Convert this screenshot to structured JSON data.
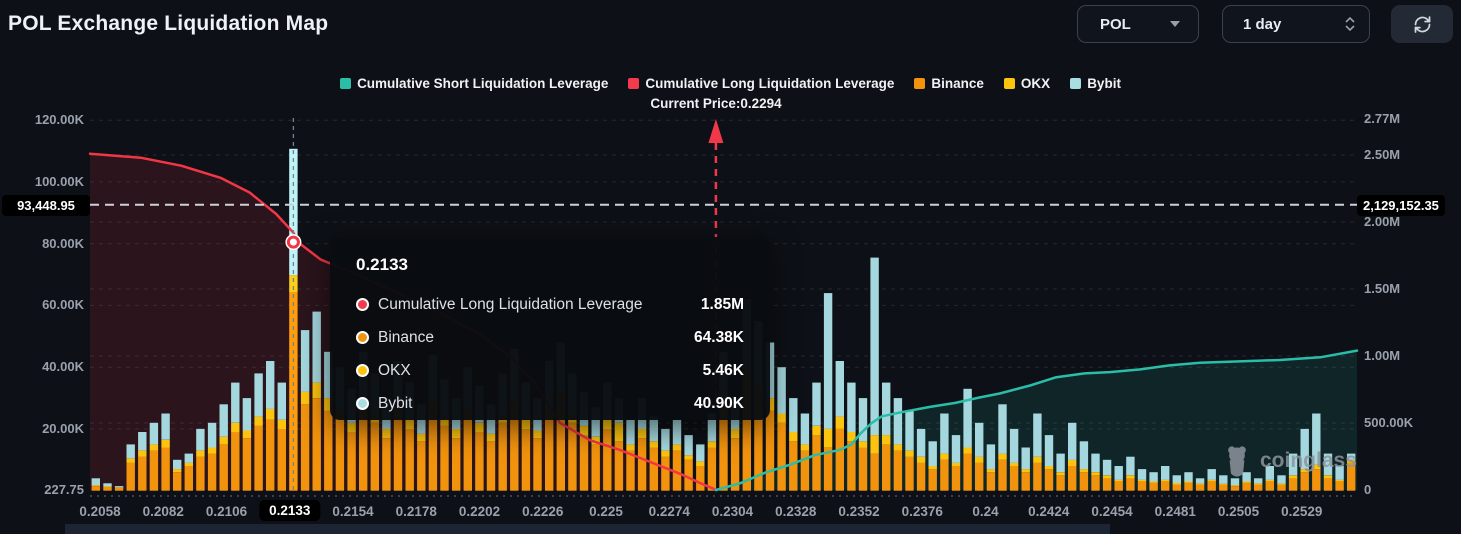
{
  "header": {
    "title": "POL Exchange Liquidation Map"
  },
  "controls": {
    "symbol": {
      "value": "POL"
    },
    "interval": {
      "value": "1 day"
    }
  },
  "legend": {
    "items": [
      {
        "label": "Cumulative Short Liquidation Leverage",
        "color": "#2abda8"
      },
      {
        "label": "Cumulative Long Liquidation Leverage",
        "color": "#f23c4d"
      },
      {
        "label": "Binance",
        "color": "#f2930d"
      },
      {
        "label": "OKX",
        "color": "#fdc40f"
      },
      {
        "label": "Bybit",
        "color": "#a9dde2"
      }
    ],
    "current_price": "Current Price:0.2294"
  },
  "tooltip": {
    "title": "0.2133",
    "rows": [
      {
        "label": "Cumulative Long Liquidation Leverage",
        "value": "1.85M",
        "color": "#f23c4d"
      },
      {
        "label": "Binance",
        "value": "64.38K",
        "color": "#f2930d"
      },
      {
        "label": "OKX",
        "value": "5.46K",
        "color": "#fdc40f"
      },
      {
        "label": "Bybit",
        "value": "40.90K",
        "color": "#a9dde2"
      }
    ]
  },
  "watermark": {
    "text": "coinglass"
  },
  "chart_data": {
    "type": "bar",
    "subtype": "stacked-bars-with-cumulative-lines",
    "x_tick_labels": [
      "0.2058",
      "0.2082",
      "0.2106",
      "0.2133",
      "0.2154",
      "0.2178",
      "0.2202",
      "0.2226",
      "0.225",
      "0.2274",
      "0.2304",
      "0.2328",
      "0.2352",
      "0.2376",
      "0.24",
      "0.2424",
      "0.2454",
      "0.2481",
      "0.2505",
      "0.2529"
    ],
    "highlighted_tick": "0.2133",
    "left_axis": {
      "unit": "K",
      "ticks": [
        {
          "label": "120.00K",
          "v": 120
        },
        {
          "label": "100.00K",
          "v": 100
        },
        {
          "label": "80.00K",
          "v": 80
        },
        {
          "label": "60.00K",
          "v": 60
        },
        {
          "label": "40.00K",
          "v": 40
        },
        {
          "label": "20.00K",
          "v": 20
        },
        {
          "label": "227.75",
          "v": 0.22775
        }
      ],
      "gridline_values": [
        120,
        100,
        80,
        60,
        40,
        20
      ],
      "crosshair": {
        "label": "93,448.95",
        "v": 93.44895
      }
    },
    "right_axis": {
      "unit": "M",
      "ticks": [
        {
          "label": "2.77M",
          "v": 2.77
        },
        {
          "label": "2.50M",
          "v": 2.5
        },
        {
          "label": "2.00M",
          "v": 2.0
        },
        {
          "label": "1.50M",
          "v": 1.5
        },
        {
          "label": "1.00M",
          "v": 1.0
        },
        {
          "label": "500.00K",
          "v": 0.5
        },
        {
          "label": "0",
          "v": 0
        }
      ],
      "gridline_values": [
        2.5,
        2.0,
        1.5,
        1.0,
        0.5
      ],
      "crosshair": {
        "label": "2,129,152.35",
        "v": 2.12915235
      }
    },
    "current_price": {
      "label": "Current Price:0.2294",
      "price": 0.2294,
      "xfrac": 0.494
    },
    "hover": {
      "bar_index": 17,
      "price": "0.2133",
      "long_value_m": 1.85
    },
    "bars": {
      "stack_order": [
        "Binance",
        "OKX",
        "Bybit"
      ],
      "unit": "K",
      "colors": [
        "#f2930d",
        "#fdc40f",
        "#a4d8de"
      ],
      "highlight_colors": [
        "#ff9d0a",
        "#ffd018",
        "#bef3f8"
      ],
      "highlight_index": 17,
      "values": [
        [
          1.5,
          0.3,
          2.2
        ],
        [
          1.2,
          0.2,
          1.0
        ],
        [
          1.0,
          0.1,
          0.4
        ],
        [
          9,
          1.5,
          4.5
        ],
        [
          11,
          2,
          6
        ],
        [
          13,
          2,
          7
        ],
        [
          14,
          2.5,
          8.5
        ],
        [
          6,
          1,
          3
        ],
        [
          8,
          1,
          3
        ],
        [
          11,
          2,
          7
        ],
        [
          12,
          2,
          8
        ],
        [
          15,
          2.5,
          10.5
        ],
        [
          19,
          3,
          13
        ],
        [
          17,
          2.5,
          10.5
        ],
        [
          21,
          3,
          14
        ],
        [
          23,
          3.5,
          15.5
        ],
        [
          20,
          3,
          12
        ],
        [
          64.38,
          5.46,
          40.9
        ],
        [
          28,
          4,
          20
        ],
        [
          30,
          5,
          23
        ],
        [
          26,
          4,
          15
        ],
        [
          23,
          3.5,
          13.5
        ],
        [
          19,
          3,
          11
        ],
        [
          26,
          4,
          15
        ],
        [
          22,
          3,
          13
        ],
        [
          17,
          3,
          10
        ],
        [
          24,
          4,
          14
        ],
        [
          20,
          3,
          12
        ],
        [
          16,
          2.5,
          9.5
        ],
        [
          25,
          4,
          15
        ],
        [
          21,
          3,
          12
        ],
        [
          17,
          3,
          10
        ],
        [
          23,
          3.5,
          13.5
        ],
        [
          19,
          3,
          12
        ],
        [
          16,
          2.5,
          9.5
        ],
        [
          22,
          3,
          13
        ],
        [
          26,
          4,
          16
        ],
        [
          20,
          3,
          12
        ],
        [
          17,
          2.5,
          10.5
        ],
        [
          24,
          4,
          14
        ],
        [
          28,
          4,
          16
        ],
        [
          22,
          3,
          13
        ],
        [
          18,
          3,
          11
        ],
        [
          15,
          2.5,
          9.5
        ],
        [
          20,
          3,
          12
        ],
        [
          16,
          6,
          8
        ],
        [
          13,
          2,
          8
        ],
        [
          17,
          3,
          10
        ],
        [
          14,
          2,
          8
        ],
        [
          11,
          2,
          7
        ],
        [
          13,
          2,
          8
        ],
        [
          10,
          1.5,
          6.5
        ],
        [
          8,
          1.5,
          5.5
        ],
        [
          14,
          2,
          9
        ],
        [
          26,
          4,
          15
        ],
        [
          17,
          3,
          10
        ],
        [
          34,
          5,
          23
        ],
        [
          30,
          4,
          21
        ],
        [
          26,
          4,
          18
        ],
        [
          22,
          3,
          15
        ],
        [
          16,
          3,
          11
        ],
        [
          13,
          2,
          10
        ],
        [
          18,
          3,
          14
        ],
        [
          14,
          6,
          44
        ],
        [
          20,
          4,
          18
        ],
        [
          16,
          3,
          16
        ],
        [
          14,
          2,
          14
        ],
        [
          12,
          6,
          57.5
        ],
        [
          15,
          3,
          17
        ],
        [
          13,
          2,
          15
        ],
        [
          11,
          2,
          13
        ],
        [
          9,
          2,
          9
        ],
        [
          7,
          1,
          8
        ],
        [
          10,
          2,
          13
        ],
        [
          8,
          1,
          9
        ],
        [
          12,
          2,
          19
        ],
        [
          9,
          2,
          11
        ],
        [
          6,
          1,
          8
        ],
        [
          10,
          2,
          16
        ],
        [
          8,
          1,
          11
        ],
        [
          6,
          1,
          7
        ],
        [
          9,
          2,
          14
        ],
        [
          7,
          1,
          10
        ],
        [
          5,
          1,
          6
        ],
        [
          8,
          2,
          12
        ],
        [
          6,
          1,
          9
        ],
        [
          5,
          1,
          6
        ],
        [
          4,
          1,
          5
        ],
        [
          3,
          0.5,
          4.5
        ],
        [
          4,
          1,
          6
        ],
        [
          3,
          0.5,
          3.5
        ],
        [
          2.5,
          0.5,
          3
        ],
        [
          3,
          0.5,
          4.5
        ],
        [
          2,
          0.5,
          2.5
        ],
        [
          2.5,
          0.5,
          3
        ],
        [
          2,
          0.3,
          1.7
        ],
        [
          3,
          0.5,
          3.5
        ],
        [
          2,
          0.3,
          2.7
        ],
        [
          1.5,
          0.3,
          2.2
        ],
        [
          2.5,
          0.5,
          3
        ],
        [
          2,
          0.3,
          1.7
        ],
        [
          3,
          0.5,
          4.5
        ],
        [
          2,
          0.3,
          2.7
        ],
        [
          4,
          1,
          7
        ],
        [
          6,
          1,
          13
        ],
        [
          7,
          1.5,
          16.5
        ],
        [
          4,
          1,
          7
        ],
        [
          3,
          0.5,
          4.5
        ],
        [
          9,
          1,
          2
        ]
      ]
    },
    "long_line": {
      "name": "Cumulative Long Liquidation Leverage",
      "color": "#f23645",
      "unit": "M",
      "points": [
        [
          0,
          2.51
        ],
        [
          0.04,
          2.48
        ],
        [
          0.072,
          2.42
        ],
        [
          0.103,
          2.33
        ],
        [
          0.126,
          2.22
        ],
        [
          0.147,
          2.06
        ],
        [
          0.1605,
          1.92
        ],
        [
          0.1642,
          1.85
        ],
        [
          0.182,
          1.72
        ],
        [
          0.213,
          1.6
        ],
        [
          0.245,
          1.46
        ],
        [
          0.277,
          1.32
        ],
        [
          0.308,
          1.16
        ],
        [
          0.331,
          1.0
        ],
        [
          0.351,
          0.8
        ],
        [
          0.371,
          0.5
        ],
        [
          0.395,
          0.37
        ],
        [
          0.418,
          0.3
        ],
        [
          0.442,
          0.21
        ],
        [
          0.466,
          0.12
        ],
        [
          0.482,
          0.05
        ],
        [
          0.492,
          0.01
        ],
        [
          0.494,
          0
        ]
      ]
    },
    "short_line": {
      "name": "Cumulative Short Liquidation Leverage",
      "color": "#2abda8",
      "unit": "M",
      "points": [
        [
          0.494,
          0
        ],
        [
          0.513,
          0.05
        ],
        [
          0.533,
          0.13
        ],
        [
          0.553,
          0.19
        ],
        [
          0.572,
          0.26
        ],
        [
          0.592,
          0.3
        ],
        [
          0.601,
          0.34
        ],
        [
          0.608,
          0.42
        ],
        [
          0.617,
          0.5
        ],
        [
          0.625,
          0.55
        ],
        [
          0.64,
          0.58
        ],
        [
          0.663,
          0.62
        ],
        [
          0.683,
          0.65
        ],
        [
          0.702,
          0.69
        ],
        [
          0.718,
          0.72
        ],
        [
          0.742,
          0.78
        ],
        [
          0.762,
          0.84
        ],
        [
          0.785,
          0.87
        ],
        [
          0.805,
          0.88
        ],
        [
          0.829,
          0.9
        ],
        [
          0.852,
          0.93
        ],
        [
          0.876,
          0.95
        ],
        [
          0.907,
          0.96
        ],
        [
          0.939,
          0.97
        ],
        [
          0.971,
          0.99
        ],
        [
          1.0,
          1.04
        ]
      ]
    }
  }
}
